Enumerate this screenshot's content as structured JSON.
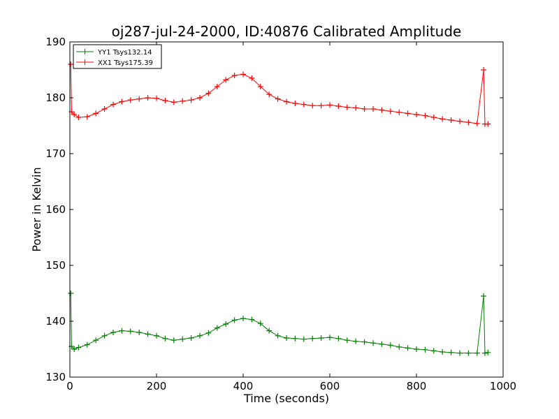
{
  "chart_data": {
    "type": "line",
    "title": "oj287-jul-24-2000, ID:40876 Calibrated Amplitude",
    "xlabel": "Time (seconds)",
    "ylabel": "Power in Kelvin",
    "xlim": [
      0,
      1000
    ],
    "ylim": [
      130,
      190
    ],
    "xticks": [
      "0",
      "200",
      "400",
      "600",
      "800",
      "1000"
    ],
    "yticks": [
      "130",
      "140",
      "150",
      "160",
      "170",
      "180",
      "190"
    ],
    "grid": false,
    "legend_position": "top-left",
    "marker": "plus",
    "series": [
      {
        "name": "YY1 Tsys132.14",
        "color": "#008000",
        "x": [
          2,
          4,
          10,
          20,
          40,
          60,
          80,
          100,
          120,
          140,
          160,
          180,
          200,
          220,
          240,
          260,
          280,
          300,
          320,
          340,
          360,
          380,
          400,
          420,
          440,
          460,
          480,
          500,
          520,
          540,
          560,
          580,
          600,
          620,
          640,
          660,
          680,
          700,
          720,
          740,
          760,
          780,
          800,
          820,
          840,
          860,
          880,
          900,
          920,
          940,
          955,
          958,
          965
        ],
        "y": [
          145.0,
          135.5,
          135.0,
          135.3,
          135.8,
          136.6,
          137.4,
          138.0,
          138.3,
          138.2,
          138.0,
          137.7,
          137.4,
          136.9,
          136.6,
          136.8,
          137.0,
          137.4,
          137.9,
          138.8,
          139.5,
          140.2,
          140.5,
          140.3,
          139.6,
          138.3,
          137.4,
          137.0,
          136.9,
          136.8,
          136.9,
          137.0,
          137.1,
          136.9,
          136.6,
          136.4,
          136.3,
          136.1,
          135.9,
          135.7,
          135.4,
          135.2,
          135.0,
          134.9,
          134.7,
          134.5,
          134.4,
          134.3,
          134.3,
          134.3,
          144.5,
          134.3,
          134.4
        ]
      },
      {
        "name": "XX1 Tsys175.39",
        "color": "#ff0000",
        "x": [
          2,
          4,
          10,
          20,
          40,
          60,
          80,
          100,
          120,
          140,
          160,
          180,
          200,
          220,
          240,
          260,
          280,
          300,
          320,
          340,
          360,
          380,
          400,
          420,
          440,
          460,
          480,
          500,
          520,
          540,
          560,
          580,
          600,
          620,
          640,
          660,
          680,
          700,
          720,
          740,
          760,
          780,
          800,
          820,
          840,
          860,
          880,
          900,
          920,
          940,
          955,
          958,
          965
        ],
        "y": [
          186.0,
          177.5,
          177.0,
          176.5,
          176.6,
          177.2,
          178.0,
          178.8,
          179.3,
          179.6,
          179.8,
          180.0,
          179.9,
          179.5,
          179.2,
          179.4,
          179.6,
          180.0,
          180.8,
          182.0,
          183.2,
          184.0,
          184.2,
          183.5,
          182.0,
          180.6,
          179.8,
          179.3,
          179.0,
          178.8,
          178.6,
          178.6,
          178.7,
          178.5,
          178.3,
          178.2,
          178.0,
          178.0,
          177.8,
          177.6,
          177.4,
          177.2,
          177.0,
          176.8,
          176.5,
          176.2,
          176.0,
          175.8,
          175.6,
          175.4,
          185.0,
          175.3,
          175.3
        ]
      }
    ]
  }
}
